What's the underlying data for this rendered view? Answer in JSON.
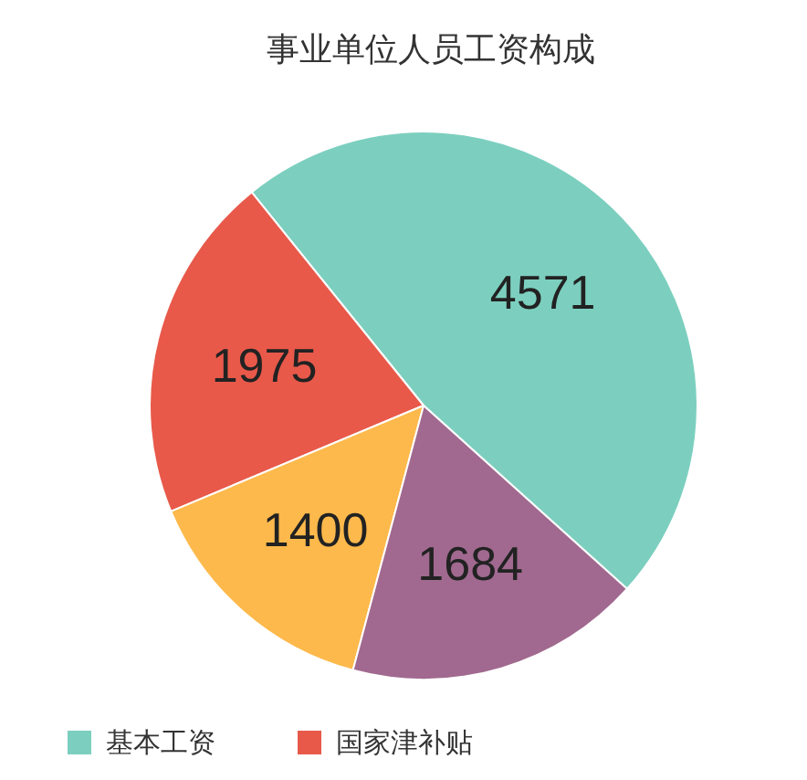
{
  "chart_data": {
    "type": "pie",
    "title": "事业单位人员工资构成",
    "categories": [
      "基本工资",
      "国家津补贴",
      null,
      null
    ],
    "values": [
      4571,
      1975,
      1400,
      1684
    ],
    "colors": [
      "#7ccfbf",
      "#e8594a",
      "#fdb94b",
      "#a1698f"
    ],
    "data_labels": true,
    "legend": "bottom"
  }
}
